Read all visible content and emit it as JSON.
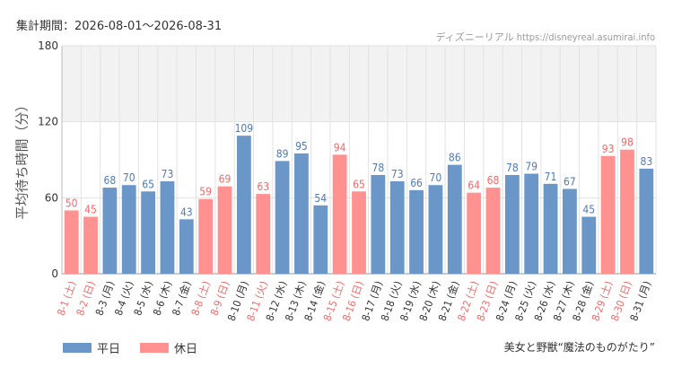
{
  "header": {
    "period": "集計期間：2026-08-01～2026-08-31",
    "credit": "ディズニーリアル https://disneyreal.asumirai.info"
  },
  "footer": {
    "attraction": "美女と野獣“魔法のものがたり”"
  },
  "colors": {
    "weekday": "#6a97c8",
    "holiday": "#ff9190",
    "weekday_text": "#4f7ab5",
    "holiday_text": "#ef6a6a",
    "band": "#f2f2f2",
    "grid": "#e2e2e2"
  },
  "chart_data": {
    "type": "bar",
    "ylabel": "平均待ち時間（分）",
    "ylim": [
      0,
      180
    ],
    "yticks": [
      0,
      60,
      120,
      180
    ],
    "grid": true,
    "shaded_band": [
      120,
      180
    ],
    "legend": {
      "position": "bottom-left",
      "entries": [
        "平日",
        "休日"
      ]
    },
    "categories": [
      "8-1 (土)",
      "8-2 (日)",
      "8-3 (月)",
      "8-4 (火)",
      "8-5 (水)",
      "8-6 (木)",
      "8-7 (金)",
      "8-8 (土)",
      "8-9 (日)",
      "8-10 (月)",
      "8-11 (火)",
      "8-12 (水)",
      "8-13 (木)",
      "8-14 (金)",
      "8-15 (土)",
      "8-16 (日)",
      "8-17 (月)",
      "8-18 (火)",
      "8-19 (水)",
      "8-20 (木)",
      "8-21 (金)",
      "8-22 (土)",
      "8-23 (日)",
      "8-24 (月)",
      "8-25 (火)",
      "8-26 (水)",
      "8-27 (木)",
      "8-28 (金)",
      "8-29 (土)",
      "8-30 (日)",
      "8-31 (月)"
    ],
    "values": [
      50,
      45,
      68,
      70,
      65,
      73,
      43,
      59,
      69,
      109,
      63,
      89,
      95,
      54,
      94,
      65,
      78,
      73,
      66,
      70,
      86,
      64,
      68,
      78,
      79,
      71,
      67,
      45,
      93,
      98,
      83
    ],
    "day_type": [
      "休日",
      "休日",
      "平日",
      "平日",
      "平日",
      "平日",
      "平日",
      "休日",
      "休日",
      "平日",
      "休日",
      "平日",
      "平日",
      "平日",
      "休日",
      "休日",
      "平日",
      "平日",
      "平日",
      "平日",
      "平日",
      "休日",
      "休日",
      "平日",
      "平日",
      "平日",
      "平日",
      "平日",
      "休日",
      "休日",
      "平日"
    ]
  }
}
